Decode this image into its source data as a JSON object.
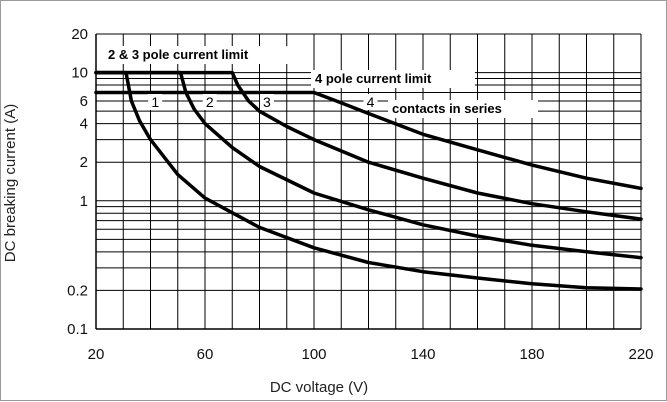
{
  "chart_data": {
    "type": "line",
    "title": "",
    "xlabel": "DC voltage (V)",
    "ylabel": "DC breaking current (A)",
    "x_scale": "linear",
    "y_scale": "log",
    "xlim": [
      20,
      220
    ],
    "ylim": [
      0.1,
      20
    ],
    "x_ticks": [
      20,
      60,
      100,
      140,
      180,
      220
    ],
    "x_tick_labels": [
      "20",
      "60",
      "100",
      "140",
      "180",
      "220"
    ],
    "x_grid_step": 10,
    "y_ticks": [
      0.1,
      0.2,
      1,
      2,
      4,
      6,
      10,
      20
    ],
    "y_tick_labels": [
      "0.1",
      "0.2",
      "1",
      "2",
      "4",
      "6",
      "10",
      "20"
    ],
    "y_grid": [
      0.1,
      0.2,
      0.3,
      0.4,
      0.5,
      0.6,
      0.7,
      0.8,
      0.9,
      1,
      2,
      3,
      4,
      5,
      6,
      7,
      8,
      9,
      10,
      20
    ],
    "grid": true,
    "series": [
      {
        "name": "1",
        "points": [
          [
            20,
            10
          ],
          [
            31,
            10
          ],
          [
            33,
            6
          ],
          [
            36,
            4.2
          ],
          [
            40,
            3.0
          ],
          [
            50,
            1.6
          ],
          [
            60,
            1.05
          ],
          [
            80,
            0.62
          ],
          [
            100,
            0.43
          ],
          [
            120,
            0.33
          ],
          [
            140,
            0.28
          ],
          [
            160,
            0.25
          ],
          [
            180,
            0.225
          ],
          [
            200,
            0.21
          ],
          [
            220,
            0.205
          ]
        ]
      },
      {
        "name": "2",
        "points": [
          [
            20,
            10
          ],
          [
            51,
            10
          ],
          [
            53,
            7
          ],
          [
            56,
            5.2
          ],
          [
            60,
            4.0
          ],
          [
            70,
            2.6
          ],
          [
            80,
            1.85
          ],
          [
            100,
            1.15
          ],
          [
            120,
            0.85
          ],
          [
            140,
            0.65
          ],
          [
            160,
            0.53
          ],
          [
            180,
            0.45
          ],
          [
            200,
            0.4
          ],
          [
            220,
            0.36
          ]
        ]
      },
      {
        "name": "3",
        "points": [
          [
            20,
            10
          ],
          [
            70,
            10
          ],
          [
            72,
            8
          ],
          [
            76,
            6.0
          ],
          [
            80,
            5.0
          ],
          [
            90,
            3.8
          ],
          [
            100,
            3.0
          ],
          [
            120,
            2.0
          ],
          [
            140,
            1.5
          ],
          [
            160,
            1.15
          ],
          [
            180,
            0.95
          ],
          [
            200,
            0.82
          ],
          [
            220,
            0.72
          ]
        ]
      },
      {
        "name": "4",
        "points": [
          [
            20,
            7
          ],
          [
            100,
            7
          ],
          [
            110,
            5.8
          ],
          [
            120,
            4.8
          ],
          [
            140,
            3.3
          ],
          [
            160,
            2.5
          ],
          [
            180,
            1.9
          ],
          [
            200,
            1.5
          ],
          [
            220,
            1.25
          ]
        ]
      }
    ],
    "annotations": [
      {
        "text": "2 & 3 pole current limit",
        "value": 10
      },
      {
        "text": "4 pole current limit",
        "value": 7
      },
      {
        "text": "contacts in series"
      }
    ]
  }
}
